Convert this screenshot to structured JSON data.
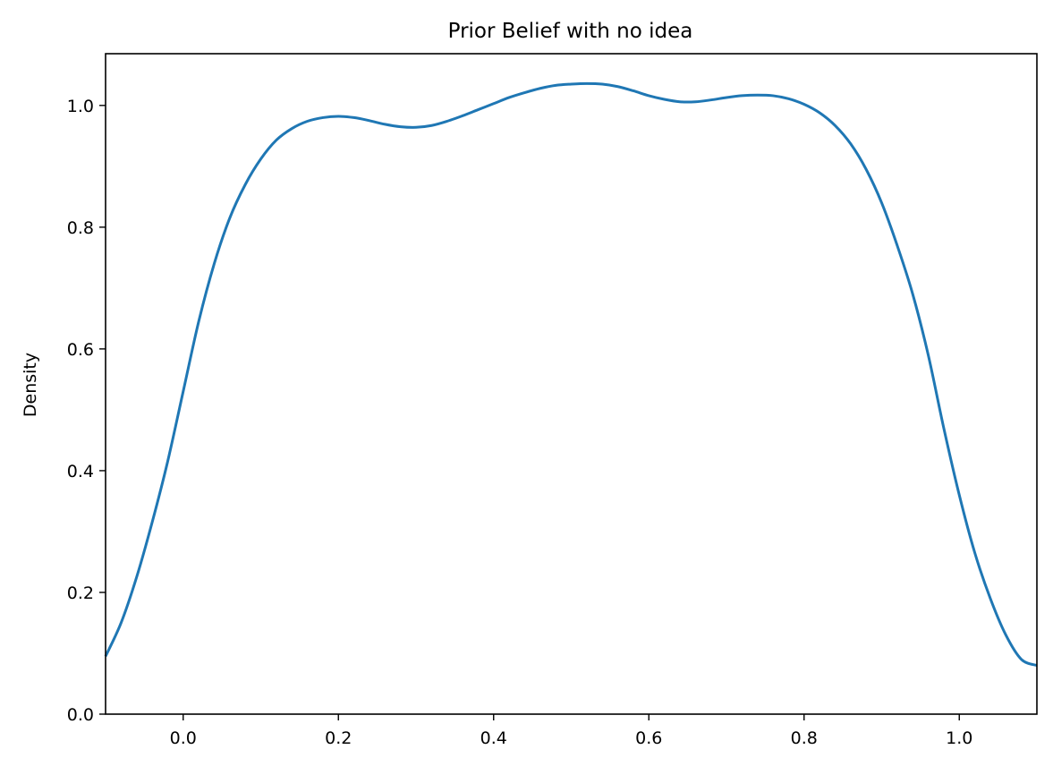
{
  "chart_data": {
    "type": "line",
    "title": "Prior Belief with no idea",
    "xlabel": "",
    "ylabel": "Density",
    "xlim": [
      -0.1,
      1.1
    ],
    "ylim": [
      0.0,
      1.085
    ],
    "grid": false,
    "legend": "none",
    "x_ticks": [
      0.0,
      0.2,
      0.4,
      0.6,
      0.8,
      1.0
    ],
    "x_tick_labels": [
      "0.0",
      "0.2",
      "0.4",
      "0.6",
      "0.8",
      "1.0"
    ],
    "y_ticks": [
      0.0,
      0.2,
      0.4,
      0.6,
      0.8,
      1.0
    ],
    "y_tick_labels": [
      "0.0",
      "0.2",
      "0.4",
      "0.6",
      "0.8",
      "1.0"
    ],
    "series": [
      {
        "color": "#1f77b4",
        "x": [
          -0.1,
          -0.08,
          -0.06,
          -0.04,
          -0.02,
          0.0,
          0.02,
          0.04,
          0.06,
          0.08,
          0.1,
          0.12,
          0.14,
          0.16,
          0.18,
          0.2,
          0.22,
          0.24,
          0.26,
          0.28,
          0.3,
          0.32,
          0.34,
          0.36,
          0.38,
          0.4,
          0.42,
          0.44,
          0.46,
          0.48,
          0.5,
          0.52,
          0.54,
          0.56,
          0.58,
          0.6,
          0.62,
          0.64,
          0.66,
          0.68,
          0.7,
          0.72,
          0.74,
          0.76,
          0.78,
          0.8,
          0.82,
          0.84,
          0.86,
          0.88,
          0.9,
          0.92,
          0.94,
          0.96,
          0.98,
          1.0,
          1.02,
          1.04,
          1.06,
          1.08,
          1.1
        ],
        "y": [
          0.095,
          0.15,
          0.225,
          0.315,
          0.415,
          0.53,
          0.645,
          0.74,
          0.815,
          0.87,
          0.912,
          0.943,
          0.962,
          0.974,
          0.98,
          0.982,
          0.98,
          0.975,
          0.969,
          0.965,
          0.964,
          0.967,
          0.974,
          0.983,
          0.993,
          1.003,
          1.013,
          1.021,
          1.028,
          1.033,
          1.035,
          1.036,
          1.035,
          1.031,
          1.024,
          1.016,
          1.01,
          1.006,
          1.006,
          1.009,
          1.013,
          1.016,
          1.017,
          1.016,
          1.011,
          1.002,
          0.988,
          0.967,
          0.937,
          0.895,
          0.84,
          0.77,
          0.69,
          0.59,
          0.47,
          0.36,
          0.265,
          0.19,
          0.13,
          0.09,
          0.08
        ]
      }
    ]
  }
}
